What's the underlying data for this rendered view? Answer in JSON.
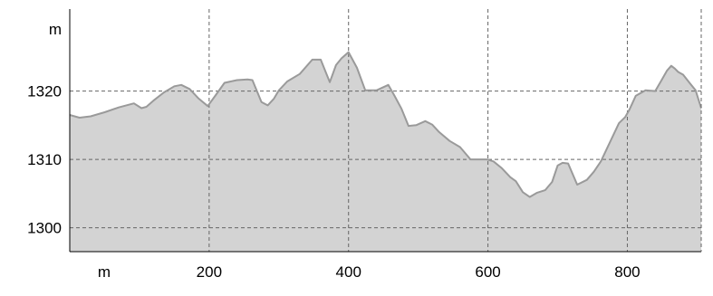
{
  "chart_data": {
    "type": "area",
    "x_unit_label": "m",
    "y_unit_label": "m",
    "x_ticks": [
      200,
      400,
      600,
      800
    ],
    "y_ticks": [
      1300,
      1310,
      1320
    ],
    "xlim": [
      0,
      906
    ],
    "ylim": [
      1296.5,
      1332
    ],
    "grid": true,
    "colors": {
      "fill": "#d3d3d3",
      "line": "#9a9a9a",
      "grid": "#666666",
      "axis": "#000000"
    },
    "series": [
      {
        "x": [
          0,
          14,
          30,
          50,
          70,
          92,
          103,
          110,
          120,
          135,
          150,
          160,
          172,
          185,
          198,
          210,
          222,
          240,
          255,
          262,
          275,
          284,
          293,
          300,
          312,
          330,
          348,
          360,
          373,
          382,
          390,
          400,
          412,
          424,
          440,
          457,
          466,
          476,
          486,
          497,
          510,
          520,
          530,
          545,
          560,
          575,
          588,
          598,
          608,
          620,
          632,
          640,
          650,
          660,
          670,
          682,
          692,
          700,
          707,
          715,
          728,
          742,
          752,
          762,
          775,
          788,
          797,
          803,
          812,
          826,
          840,
          848,
          857,
          863,
          868,
          873,
          880,
          890,
          898,
          906
        ],
        "y": [
          1316.5,
          1316.1,
          1316.3,
          1316.9,
          1317.6,
          1318.2,
          1317.5,
          1317.7,
          1318.6,
          1319.8,
          1320.7,
          1320.9,
          1320.3,
          1318.9,
          1317.8,
          1319.5,
          1321.2,
          1321.6,
          1321.7,
          1321.6,
          1318.4,
          1317.9,
          1318.9,
          1320.1,
          1321.4,
          1322.5,
          1324.6,
          1324.6,
          1321.3,
          1323.8,
          1324.8,
          1325.7,
          1323.4,
          1320.1,
          1320.1,
          1320.9,
          1319.3,
          1317.4,
          1314.9,
          1315.0,
          1315.6,
          1315.1,
          1314.0,
          1312.7,
          1311.8,
          1310.0,
          1310.0,
          1310.0,
          1309.7,
          1308.7,
          1307.4,
          1306.8,
          1305.2,
          1304.5,
          1305.1,
          1305.5,
          1306.7,
          1309.1,
          1309.5,
          1309.4,
          1306.3,
          1307.0,
          1308.2,
          1309.7,
          1312.5,
          1315.3,
          1316.2,
          1317.3,
          1319.3,
          1320.1,
          1320.0,
          1321.4,
          1323.0,
          1323.7,
          1323.3,
          1322.8,
          1322.4,
          1321.1,
          1320.1,
          1317.5
        ]
      }
    ]
  }
}
